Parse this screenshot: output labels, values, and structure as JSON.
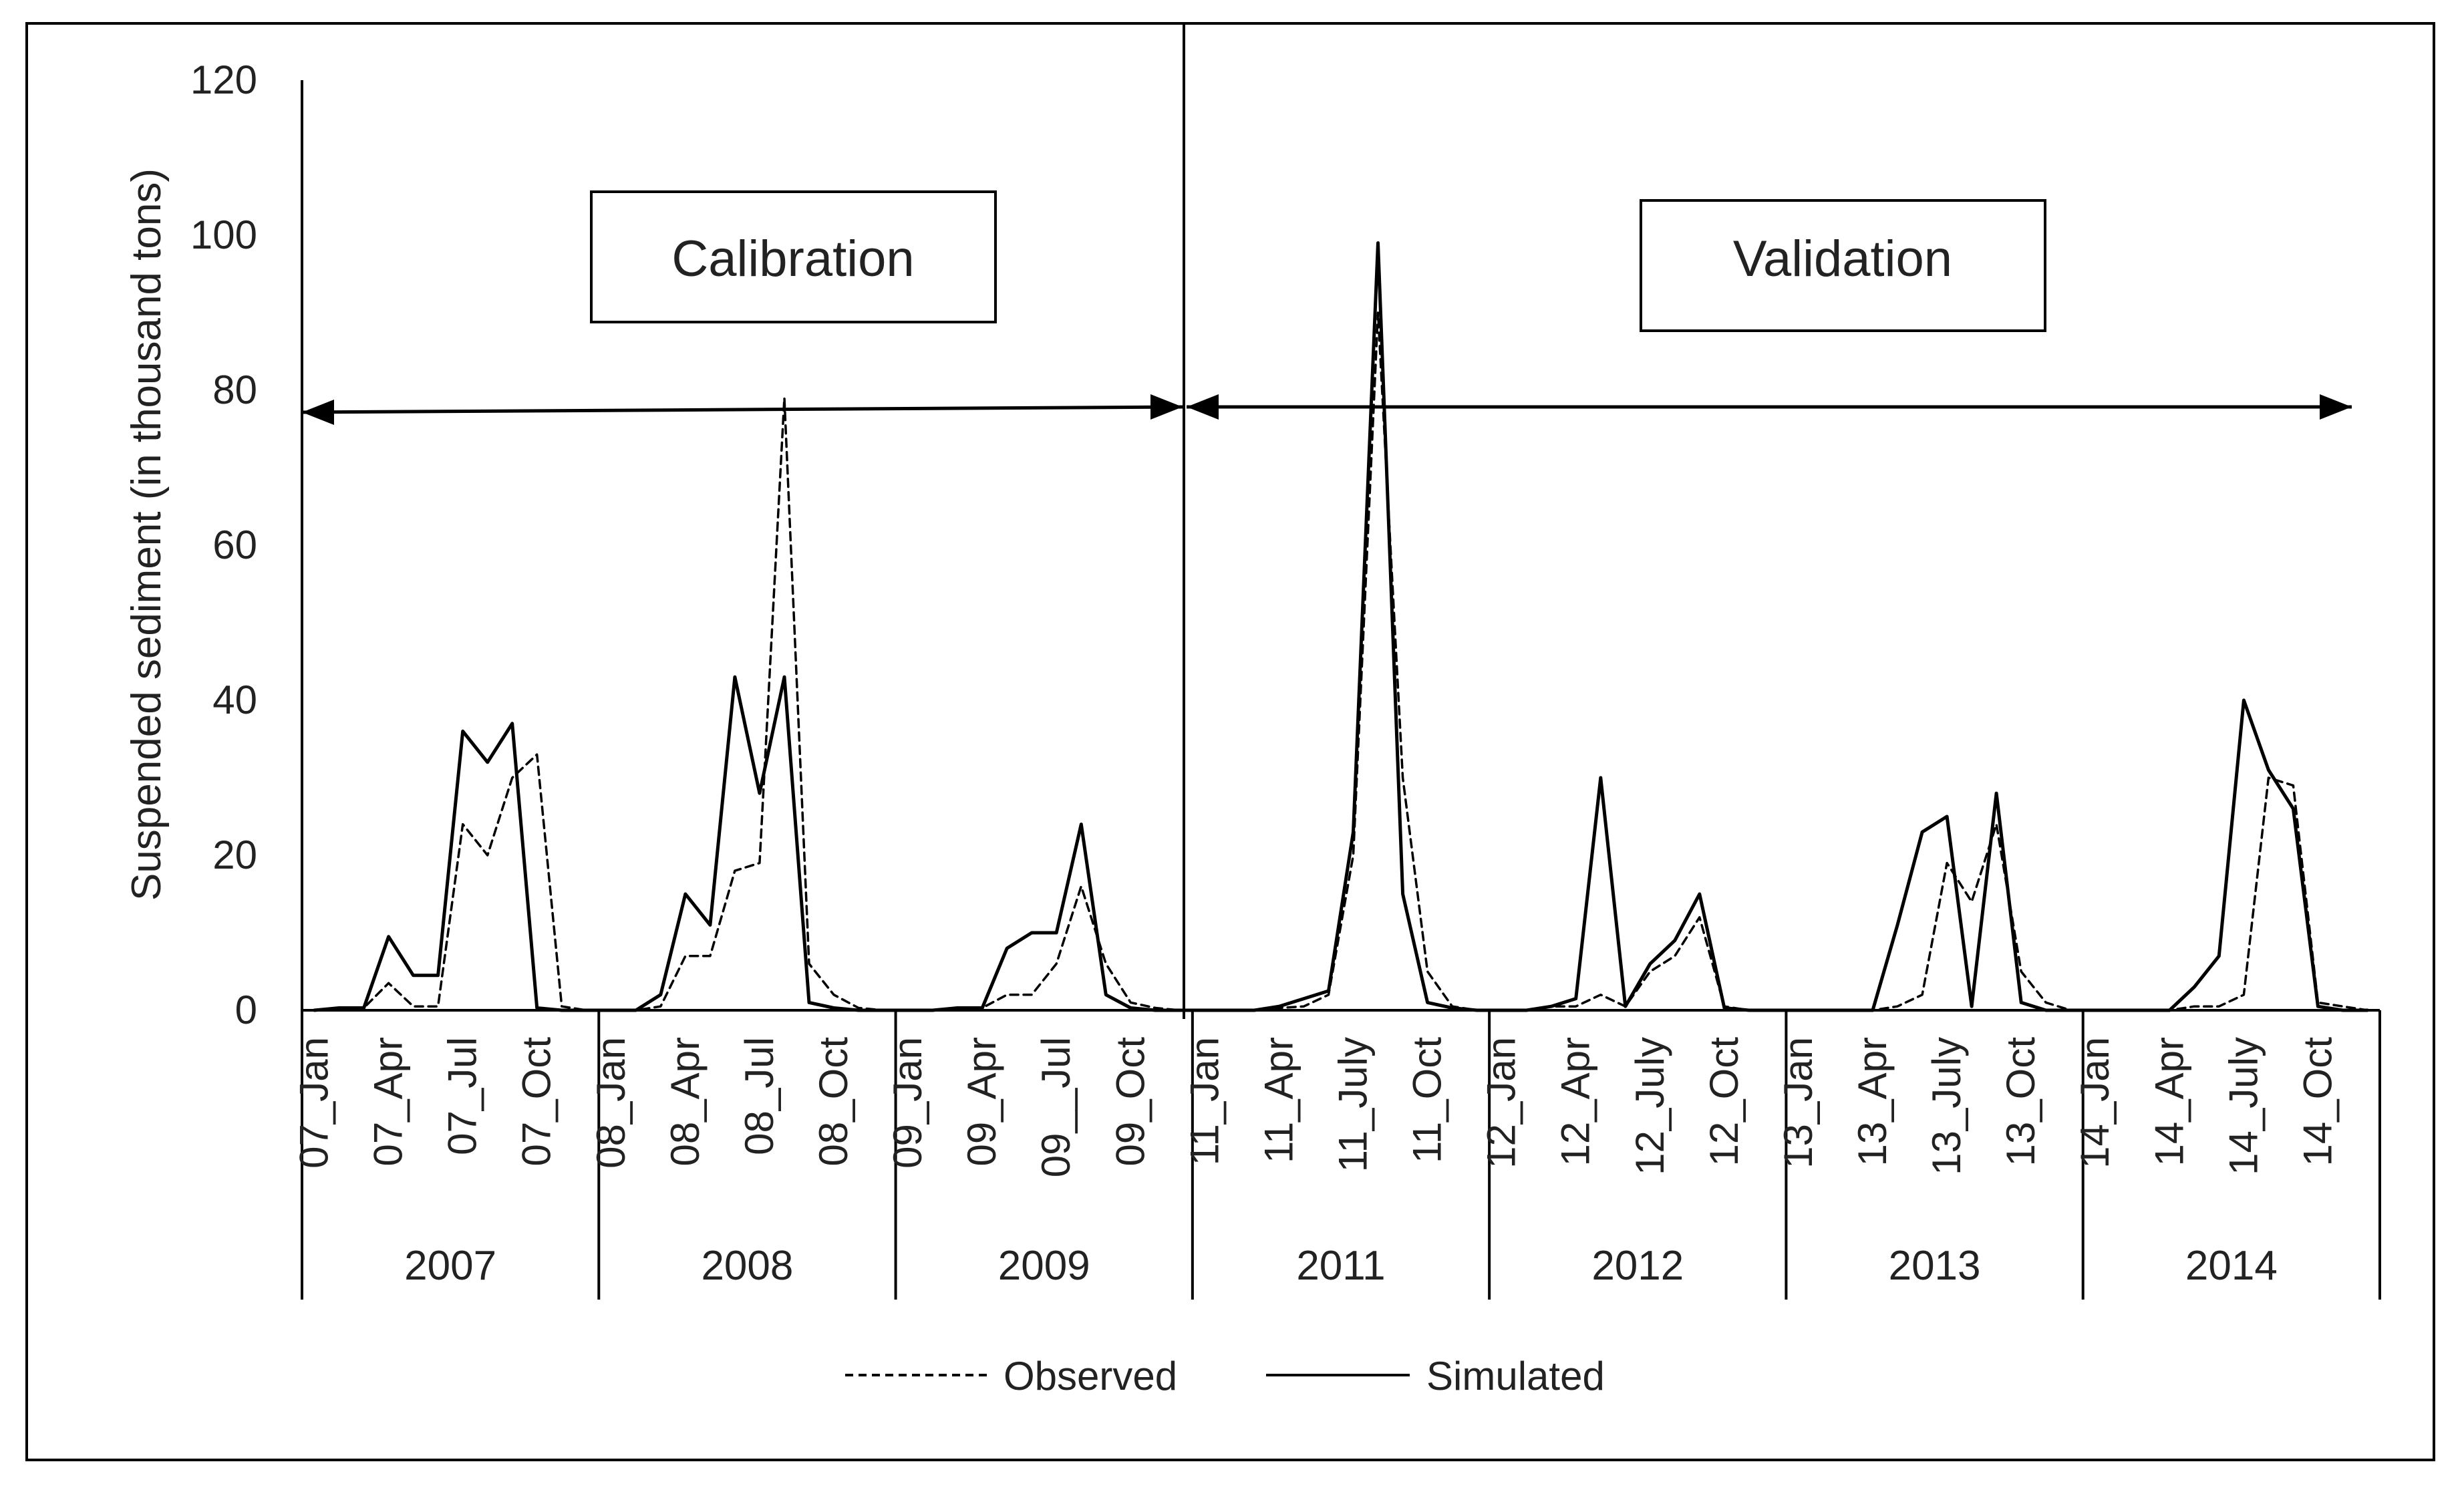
{
  "chart_data": {
    "type": "line",
    "title": "",
    "xlabel": "",
    "ylabel": "Suspended sediment (in thousand tons)",
    "ylim": [
      0,
      120
    ],
    "yticks": [
      0,
      20,
      40,
      60,
      80,
      100,
      120
    ],
    "grid": false,
    "legend": "bottom-center",
    "periods": [
      {
        "name": "Calibration",
        "years": [
          "2007",
          "2008",
          "2009"
        ]
      },
      {
        "name": "Validation",
        "years": [
          "2011",
          "2012",
          "2013",
          "2014"
        ]
      }
    ],
    "years": [
      {
        "label": "2007",
        "ticks": [
          "07_Jan",
          "07_Apr",
          "07_Jul",
          "07_Oct"
        ]
      },
      {
        "label": "2008",
        "ticks": [
          "08_Jan",
          "08_Apr",
          "08_Jul",
          "08_Oct"
        ]
      },
      {
        "label": "2009",
        "ticks": [
          "09_Jan",
          "09_Apr",
          "09__Jul",
          "09_Oct"
        ]
      },
      {
        "label": "2011",
        "ticks": [
          "11_Jan",
          "11_Apr",
          "11_July",
          "11_Oct"
        ]
      },
      {
        "label": "2012",
        "ticks": [
          "12_Jan",
          "12_Apr",
          "12_July",
          "12_Oct"
        ]
      },
      {
        "label": "2013",
        "ticks": [
          "13_Jan",
          "13_Apr",
          "13_July",
          "13_Oct"
        ]
      },
      {
        "label": "2014",
        "ticks": [
          "14_Jan",
          "14_Apr",
          "14_July",
          "14_Oct"
        ]
      }
    ],
    "series": [
      {
        "name": "Observed",
        "style": "dashed",
        "values": [
          0,
          0.3,
          0.3,
          3.5,
          0.5,
          0.5,
          24,
          20,
          30,
          33,
          0.5,
          0,
          0,
          0,
          0.5,
          7,
          7,
          18,
          19,
          79,
          6,
          2,
          0.3,
          0,
          0,
          0,
          0.3,
          0.3,
          2,
          2,
          6,
          16,
          6,
          1,
          0.3,
          0,
          0,
          0,
          0,
          0.3,
          0.5,
          2,
          20,
          90,
          30,
          5,
          0.5,
          0,
          0,
          0,
          0.5,
          0.5,
          2,
          0.5,
          5,
          7,
          12,
          0.5,
          0,
          0,
          0,
          0,
          0,
          0,
          0.5,
          2,
          19,
          14,
          24,
          5,
          1,
          0,
          0,
          0,
          0,
          0,
          0.5,
          0.5,
          2,
          30,
          29,
          1,
          0.5,
          0
        ]
      },
      {
        "name": "Simulated",
        "style": "solid",
        "values": [
          0,
          0.3,
          0.3,
          9.5,
          4.5,
          4.5,
          36,
          32,
          37,
          0.3,
          0,
          0,
          0,
          0,
          2,
          15,
          11,
          43,
          28,
          43,
          1,
          0.3,
          0,
          0,
          0,
          0,
          0.3,
          0.3,
          8,
          10,
          10,
          24,
          2,
          0.3,
          0,
          0,
          0,
          0,
          0,
          0.5,
          1.5,
          2.5,
          23,
          99,
          15,
          1,
          0.3,
          0,
          0,
          0,
          0.5,
          1.5,
          30,
          0.5,
          6,
          9,
          15,
          0.3,
          0,
          0,
          0,
          0,
          0,
          0,
          11,
          23,
          25,
          0.5,
          28,
          1,
          0,
          0,
          0,
          0,
          0,
          0,
          3,
          7,
          40,
          31,
          26,
          0.5,
          0,
          0
        ]
      }
    ]
  }
}
